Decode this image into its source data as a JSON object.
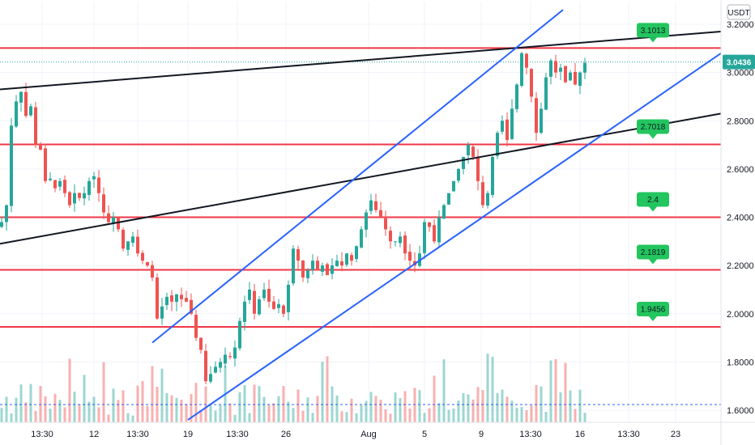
{
  "chart_data": {
    "type": "candlestick",
    "currency": "USDT",
    "last_price": "3.0436",
    "ylim": [
      1.58,
      3.23
    ],
    "y_ticks": [
      "1.6000",
      "1.8000",
      "2.0000",
      "2.2000",
      "2.4000",
      "2.6000",
      "2.8000",
      "3.0000",
      "3.2000"
    ],
    "x_ticks": [
      "13:30",
      "12",
      "13:30",
      "19",
      "13:30",
      "26",
      "Aug",
      "5",
      "9",
      "13:30",
      "16",
      "13:30",
      "23"
    ],
    "levels": [
      {
        "label": "3.1013",
        "value": 3.1013
      },
      {
        "label": "2.7018",
        "value": 2.7018
      },
      {
        "label": "2.4",
        "value": 2.4
      },
      {
        "label": "2.1819",
        "value": 2.1819
      },
      {
        "label": "1.9456",
        "value": 1.9456
      }
    ],
    "price_path": [
      [
        0,
        2.38
      ],
      [
        6,
        2.45
      ],
      [
        12,
        2.78
      ],
      [
        18,
        2.88
      ],
      [
        24,
        2.92
      ],
      [
        30,
        2.82
      ],
      [
        36,
        2.86
      ],
      [
        42,
        2.7
      ],
      [
        48,
        2.68
      ],
      [
        54,
        2.55
      ],
      [
        60,
        2.56
      ],
      [
        66,
        2.52
      ],
      [
        72,
        2.55
      ],
      [
        78,
        2.5
      ],
      [
        84,
        2.45
      ],
      [
        90,
        2.5
      ],
      [
        96,
        2.48
      ],
      [
        102,
        2.5
      ],
      [
        108,
        2.55
      ],
      [
        114,
        2.57
      ],
      [
        120,
        2.5
      ],
      [
        126,
        2.42
      ],
      [
        132,
        2.38
      ],
      [
        138,
        2.4
      ],
      [
        144,
        2.35
      ],
      [
        150,
        2.27
      ],
      [
        156,
        2.3
      ],
      [
        162,
        2.32
      ],
      [
        168,
        2.25
      ],
      [
        174,
        2.22
      ],
      [
        180,
        2.2
      ],
      [
        186,
        2.15
      ],
      [
        192,
        1.98
      ],
      [
        198,
        2.03
      ],
      [
        204,
        2.07
      ],
      [
        210,
        2.05
      ],
      [
        216,
        2.08
      ],
      [
        222,
        2.06
      ],
      [
        228,
        2.05
      ],
      [
        234,
        2.0
      ],
      [
        240,
        1.9
      ],
      [
        246,
        1.85
      ],
      [
        252,
        1.72
      ],
      [
        258,
        1.75
      ],
      [
        264,
        1.78
      ],
      [
        270,
        1.8
      ],
      [
        276,
        1.83
      ],
      [
        282,
        1.82
      ],
      [
        288,
        1.86
      ],
      [
        294,
        1.97
      ],
      [
        300,
        2.05
      ],
      [
        306,
        2.1
      ],
      [
        312,
        2.0
      ],
      [
        318,
        2.06
      ],
      [
        324,
        2.1
      ],
      [
        330,
        2.05
      ],
      [
        336,
        2.02
      ],
      [
        342,
        2.04
      ],
      [
        348,
        2.0
      ],
      [
        354,
        2.12
      ],
      [
        360,
        2.27
      ],
      [
        366,
        2.22
      ],
      [
        372,
        2.15
      ],
      [
        378,
        2.18
      ],
      [
        384,
        2.22
      ],
      [
        390,
        2.18
      ],
      [
        396,
        2.2
      ],
      [
        402,
        2.16
      ],
      [
        408,
        2.2
      ],
      [
        414,
        2.22
      ],
      [
        420,
        2.2
      ],
      [
        426,
        2.25
      ],
      [
        432,
        2.22
      ],
      [
        438,
        2.28
      ],
      [
        444,
        2.35
      ],
      [
        450,
        2.42
      ],
      [
        456,
        2.47
      ],
      [
        462,
        2.43
      ],
      [
        468,
        2.4
      ],
      [
        474,
        2.35
      ],
      [
        480,
        2.3
      ],
      [
        486,
        2.3
      ],
      [
        492,
        2.32
      ],
      [
        498,
        2.25
      ],
      [
        504,
        2.22
      ],
      [
        510,
        2.2
      ],
      [
        516,
        2.25
      ],
      [
        522,
        2.38
      ],
      [
        528,
        2.36
      ],
      [
        534,
        2.3
      ],
      [
        540,
        2.4
      ],
      [
        546,
        2.45
      ],
      [
        552,
        2.5
      ],
      [
        558,
        2.55
      ],
      [
        564,
        2.6
      ],
      [
        570,
        2.65
      ],
      [
        576,
        2.7
      ],
      [
        582,
        2.65
      ],
      [
        588,
        2.55
      ],
      [
        594,
        2.45
      ],
      [
        600,
        2.5
      ],
      [
        606,
        2.65
      ],
      [
        612,
        2.75
      ],
      [
        618,
        2.8
      ],
      [
        624,
        2.72
      ],
      [
        630,
        2.85
      ],
      [
        636,
        2.95
      ],
      [
        642,
        3.08
      ],
      [
        648,
        3.02
      ],
      [
        654,
        2.9
      ],
      [
        660,
        2.75
      ],
      [
        666,
        2.85
      ],
      [
        672,
        2.98
      ],
      [
        678,
        3.05
      ],
      [
        684,
        3.0
      ],
      [
        690,
        3.02
      ],
      [
        696,
        2.96
      ],
      [
        702,
        3.0
      ],
      [
        708,
        2.95
      ],
      [
        714,
        3.0
      ],
      [
        720,
        3.04
      ]
    ],
    "lines": [
      {
        "color": "#131722",
        "from": [
          0,
          2.93
        ],
        "to": [
          890,
          3.17
        ]
      },
      {
        "color": "#131722",
        "from": [
          0,
          2.29
        ],
        "to": [
          890,
          2.83
        ]
      },
      {
        "color": "#2962ff",
        "from": [
          188,
          1.88
        ],
        "to": [
          695,
          3.26
        ]
      },
      {
        "color": "#2962ff",
        "from": [
          232,
          1.56
        ],
        "to": [
          890,
          3.08
        ]
      }
    ]
  },
  "colors": {
    "up": "#26a69a",
    "down": "#ef5350",
    "level": "#f23645",
    "label_bg": "#22c55e",
    "current": "#26a69a",
    "grid": "#f0f3fa",
    "axis_text": "#131722",
    "blue_line": "#2962ff",
    "black_line": "#131722",
    "volume_dash": "#2962ff"
  }
}
